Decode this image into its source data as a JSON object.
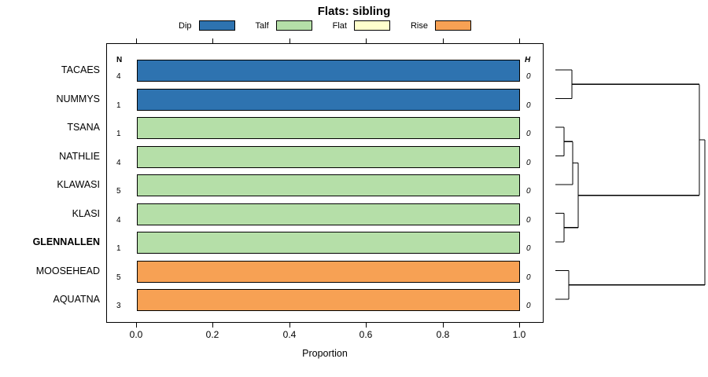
{
  "chart_data": {
    "type": "bar",
    "orientation": "horizontal",
    "title": "Flats: sibling",
    "xlabel": "Proportion",
    "xlim": [
      0,
      1
    ],
    "x_ticks": [
      0.0,
      0.2,
      0.4,
      0.6,
      0.8,
      1.0
    ],
    "x_tick_labels": [
      "0.0",
      "0.2",
      "0.4",
      "0.6",
      "0.8",
      "1.0"
    ],
    "grid": false,
    "legend_position": "top",
    "legend": [
      {
        "label": "Dip",
        "color": "#2E73B0"
      },
      {
        "label": "Talf",
        "color": "#B5DFA8"
      },
      {
        "label": "Flat",
        "color": "#FFFFCC"
      },
      {
        "label": "Rise",
        "color": "#F7A154"
      }
    ],
    "columns": {
      "n_header": "N",
      "h_header": "H"
    },
    "rows": [
      {
        "label": "TACAES",
        "N": 4,
        "H": 0,
        "segment": "Dip",
        "proportion": 1.0,
        "bold": false
      },
      {
        "label": "NUMMYS",
        "N": 1,
        "H": 0,
        "segment": "Dip",
        "proportion": 1.0,
        "bold": false
      },
      {
        "label": "TSANA",
        "N": 1,
        "H": 0,
        "segment": "Talf",
        "proportion": 1.0,
        "bold": false
      },
      {
        "label": "NATHLIE",
        "N": 4,
        "H": 0,
        "segment": "Talf",
        "proportion": 1.0,
        "bold": false
      },
      {
        "label": "KLAWASI",
        "N": 5,
        "H": 0,
        "segment": "Talf",
        "proportion": 1.0,
        "bold": false
      },
      {
        "label": "KLASI",
        "N": 4,
        "H": 0,
        "segment": "Talf",
        "proportion": 1.0,
        "bold": false
      },
      {
        "label": "GLENNALLEN",
        "N": 1,
        "H": 0,
        "segment": "Talf",
        "proportion": 1.0,
        "bold": true
      },
      {
        "label": "MOOSEHEAD",
        "N": 5,
        "H": 0,
        "segment": "Rise",
        "proportion": 1.0,
        "bold": false
      },
      {
        "label": "AQUATNA",
        "N": 3,
        "H": 0,
        "segment": "Rise",
        "proportion": 1.0,
        "bold": false
      }
    ],
    "dendrogram": {
      "position": "right",
      "structure": [
        [
          [
            "TACAES",
            "NUMMYS"
          ],
          [
            [
              [
                "TSANA",
                "NATHLIE"
              ],
              "KLAWASI"
            ],
            [
              "KLASI",
              "GLENNALLEN"
            ]
          ]
        ],
        [
          "MOOSEHEAD",
          "AQUATNA"
        ]
      ]
    }
  }
}
